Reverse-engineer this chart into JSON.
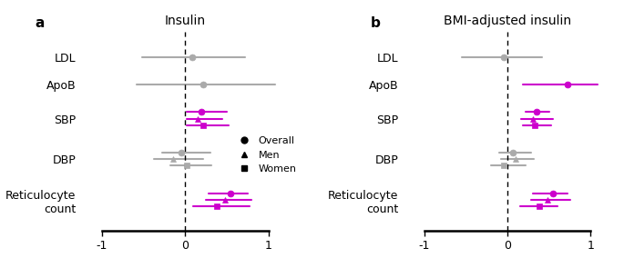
{
  "panel_a": {
    "title": "Insulin",
    "data": [
      {
        "label": "LDL",
        "rows": [
          {
            "val": 0.08,
            "lo": -0.52,
            "hi": 0.72,
            "color": "gray",
            "marker": "o"
          }
        ]
      },
      {
        "label": "ApoB",
        "rows": [
          {
            "val": 0.22,
            "lo": -0.58,
            "hi": 1.08,
            "color": "gray",
            "marker": "o"
          }
        ]
      },
      {
        "label": "SBP",
        "rows": [
          {
            "val": 0.2,
            "lo": 0.02,
            "hi": 0.5,
            "color": "purple",
            "marker": "o"
          },
          {
            "val": 0.15,
            "lo": 0.02,
            "hi": 0.45,
            "color": "purple",
            "marker": "^"
          },
          {
            "val": 0.22,
            "lo": 0.02,
            "hi": 0.52,
            "color": "purple",
            "marker": "s"
          }
        ]
      },
      {
        "label": "DBP",
        "rows": [
          {
            "val": -0.05,
            "lo": -0.28,
            "hi": 0.3,
            "color": "gray",
            "marker": "o"
          },
          {
            "val": -0.15,
            "lo": -0.38,
            "hi": 0.22,
            "color": "gray",
            "marker": "^"
          },
          {
            "val": 0.02,
            "lo": -0.18,
            "hi": 0.32,
            "color": "gray",
            "marker": "s"
          }
        ]
      },
      {
        "label": "Reticulocyte\ncount",
        "rows": [
          {
            "val": 0.55,
            "lo": 0.28,
            "hi": 0.75,
            "color": "purple",
            "marker": "o"
          },
          {
            "val": 0.48,
            "lo": 0.25,
            "hi": 0.8,
            "color": "purple",
            "marker": "^"
          },
          {
            "val": 0.38,
            "lo": 0.1,
            "hi": 0.78,
            "color": "purple",
            "marker": "s"
          }
        ]
      }
    ]
  },
  "panel_b": {
    "title": "BMI-adjusted insulin",
    "data": [
      {
        "label": "LDL",
        "rows": [
          {
            "val": -0.05,
            "lo": -0.55,
            "hi": 0.42,
            "color": "gray",
            "marker": "o"
          }
        ]
      },
      {
        "label": "ApoB",
        "rows": [
          {
            "val": 0.72,
            "lo": 0.18,
            "hi": 1.08,
            "color": "purple",
            "marker": "o"
          }
        ]
      },
      {
        "label": "SBP",
        "rows": [
          {
            "val": 0.35,
            "lo": 0.22,
            "hi": 0.5,
            "color": "purple",
            "marker": "o"
          },
          {
            "val": 0.3,
            "lo": 0.16,
            "hi": 0.55,
            "color": "purple",
            "marker": "^"
          },
          {
            "val": 0.33,
            "lo": 0.18,
            "hi": 0.52,
            "color": "purple",
            "marker": "s"
          }
        ]
      },
      {
        "label": "DBP",
        "rows": [
          {
            "val": 0.06,
            "lo": -0.1,
            "hi": 0.28,
            "color": "gray",
            "marker": "o"
          },
          {
            "val": 0.1,
            "lo": -0.08,
            "hi": 0.32,
            "color": "gray",
            "marker": "^"
          },
          {
            "val": -0.05,
            "lo": -0.2,
            "hi": 0.22,
            "color": "gray",
            "marker": "s"
          }
        ]
      },
      {
        "label": "Reticulocyte\ncount",
        "rows": [
          {
            "val": 0.55,
            "lo": 0.3,
            "hi": 0.72,
            "color": "purple",
            "marker": "o"
          },
          {
            "val": 0.48,
            "lo": 0.28,
            "hi": 0.75,
            "color": "purple",
            "marker": "^"
          },
          {
            "val": 0.38,
            "lo": 0.15,
            "hi": 0.6,
            "color": "purple",
            "marker": "s"
          }
        ]
      }
    ]
  },
  "xlim": [
    -1.25,
    1.25
  ],
  "xticks": [
    -1,
    0,
    1
  ],
  "xticklabels": [
    "-1",
    "0",
    "1"
  ],
  "purple": "#CC00CC",
  "gray": "#AAAAAA",
  "legend_labels": [
    "Overall",
    "Men",
    "Women"
  ],
  "legend_markers": [
    "o",
    "^",
    "s"
  ],
  "cat_y": {
    "LDL": 10.0,
    "ApoB": 8.4,
    "SBP": 6.4,
    "DBP": 4.0,
    "Reticulocyte\ncount": 1.6
  },
  "offsets": [
    0.38,
    0.0,
    -0.38
  ],
  "ylim": [
    -0.2,
    11.5
  ]
}
